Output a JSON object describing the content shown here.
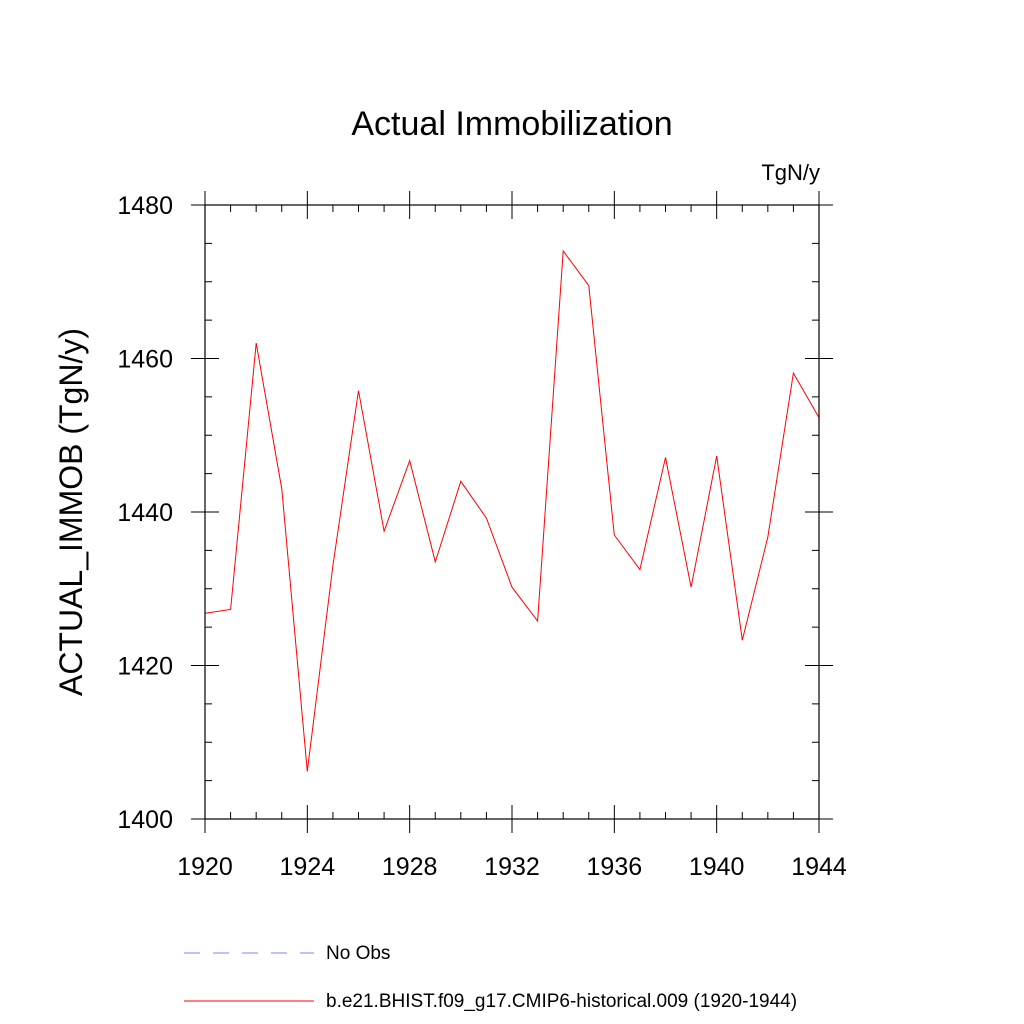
{
  "chart_data": {
    "type": "line",
    "title": "Actual Immobilization",
    "units_label": "TgN/y",
    "ylabel": "ACTUAL_IMMOB  (TgN/y)",
    "xlabel": "",
    "xlim": [
      1920,
      1944
    ],
    "ylim": [
      1400,
      1480
    ],
    "x_ticks": [
      "1920",
      "1924",
      "1928",
      "1932",
      "1936",
      "1940",
      "1944"
    ],
    "y_ticks": [
      "1400",
      "1420",
      "1440",
      "1460",
      "1480"
    ],
    "grid": false,
    "legend_position": "bottom",
    "x": [
      1920,
      1921,
      1922,
      1923,
      1924,
      1925,
      1926,
      1927,
      1928,
      1929,
      1930,
      1931,
      1932,
      1933,
      1934,
      1935,
      1936,
      1937,
      1938,
      1939,
      1940,
      1941,
      1942,
      1943,
      1944
    ],
    "series": [
      {
        "name": "b.e21.BHIST.f09_g17.CMIP6-historical.009 (1920-1944)",
        "color": "#ff0000",
        "style": "solid",
        "values": [
          1426.8,
          1427.3,
          1462.0,
          1443.0,
          1406.2,
          1433.0,
          1455.8,
          1437.5,
          1446.7,
          1433.5,
          1444.0,
          1439.2,
          1430.2,
          1425.8,
          1474.0,
          1469.5,
          1437.0,
          1432.5,
          1447.1,
          1430.2,
          1447.3,
          1423.3,
          1436.7,
          1458.1,
          1452.3
        ]
      }
    ],
    "legend": [
      {
        "label": "No Obs",
        "color": "#8080ff",
        "style": "dashed"
      },
      {
        "label": "b.e21.BHIST.f09_g17.CMIP6-historical.009 (1920-1944)",
        "color": "#ff0000",
        "style": "solid"
      }
    ]
  }
}
